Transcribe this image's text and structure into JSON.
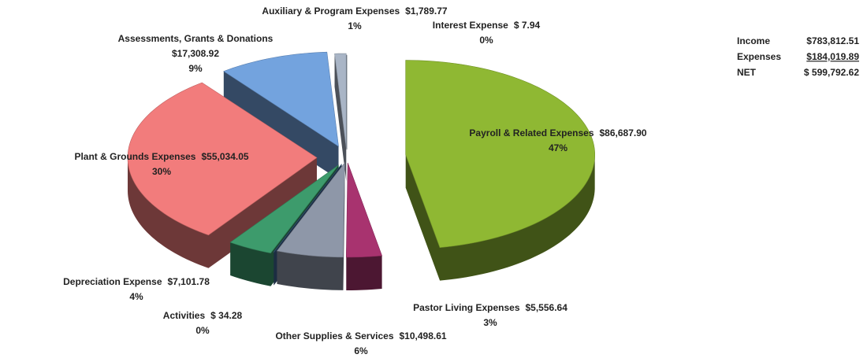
{
  "chart_data": {
    "type": "pie3d",
    "categories": [
      "Payroll & Related Expenses",
      "Pastor Living Expenses",
      "Other Supplies & Services",
      "Activities",
      "Depreciation Expense",
      "Plant & Grounds Expenses",
      "Assessments, Grants & Donations",
      "Auxiliary & Program Expenses",
      "Interest Expense"
    ],
    "values": [
      86687.9,
      5556.64,
      10498.61,
      34.28,
      7101.78,
      55034.05,
      17308.92,
      1789.77,
      7.94
    ],
    "value_labels": [
      "$86,687.90",
      "$5,556.64",
      "$10,498.61",
      "$ 34.28",
      "$7,101.78",
      "$55,034.05",
      "$17,308.92",
      "$1,789.77",
      "$ 7.94"
    ],
    "percent_labels": [
      "47%",
      "3%",
      "6%",
      "0%",
      "4%",
      "30%",
      "9%",
      "1%",
      "0%"
    ],
    "colors": [
      "#8fb833",
      "#a8336f",
      "#8e97a8",
      "#3f6593",
      "#3d9b6c",
      "#f27c7c",
      "#73a3de",
      "#a9b5c6",
      "#3b4a5c"
    ]
  },
  "summary": {
    "rows": [
      [
        "Income",
        "$783,812.51"
      ],
      [
        "Expenses",
        "$184,019.89"
      ],
      [
        "NET",
        "$ 599,792.62"
      ]
    ]
  }
}
